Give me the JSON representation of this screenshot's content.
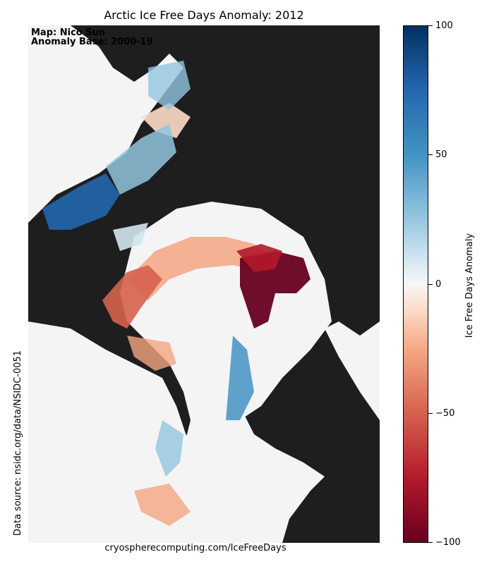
{
  "title": "Arctic Ice Free Days Anomaly: 2012",
  "map_credit": "Map: Nico Sun",
  "anomaly_base": "Anomaly Base: 2000-19",
  "source": "Data source: nsidc.org/data/NSIDC-0051",
  "footer": "cryospherecomputing.com/IceFreeDays",
  "colorbar": {
    "label": "Ice Free Days Anomaly",
    "min": -100,
    "max": 100,
    "ticks": [
      "100",
      "50",
      "0",
      "−50",
      "−100"
    ],
    "colormap": "RdBu"
  },
  "colors": {
    "land": "#1e1e1e",
    "no_anomaly": "#f4f4f4",
    "positive": "#2166ac",
    "negative": "#b2182b"
  }
}
